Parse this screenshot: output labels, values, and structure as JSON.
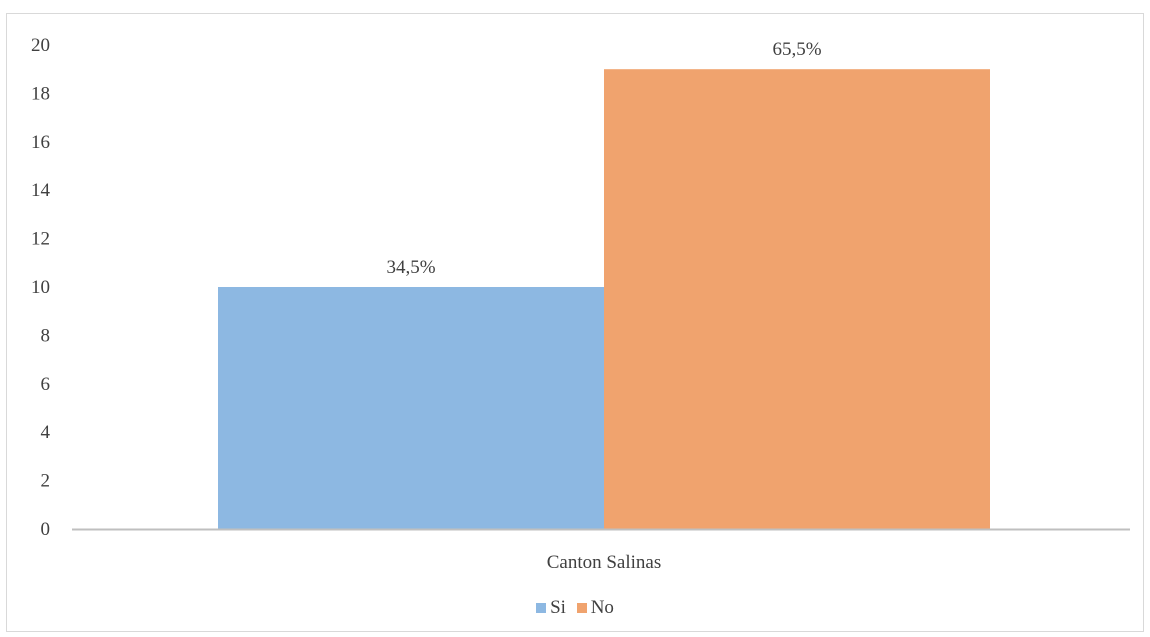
{
  "chart_data": {
    "type": "bar",
    "categories": [
      "Canton Salinas"
    ],
    "series": [
      {
        "name": "Si",
        "values": [
          10
        ],
        "label": "34,5%",
        "color": "#8db8e2"
      },
      {
        "name": "No",
        "values": [
          19
        ],
        "label": "65,5%",
        "color": "#f0a36e"
      }
    ],
    "title": "",
    "xlabel": "",
    "ylabel": "",
    "ylim": [
      0,
      20
    ],
    "yticks": [
      "0",
      "2",
      "4",
      "6",
      "8",
      "10",
      "12",
      "14",
      "16",
      "18",
      "20"
    ],
    "grid": false,
    "legend_position": "bottom",
    "axis_color": "#bfbfbf"
  }
}
